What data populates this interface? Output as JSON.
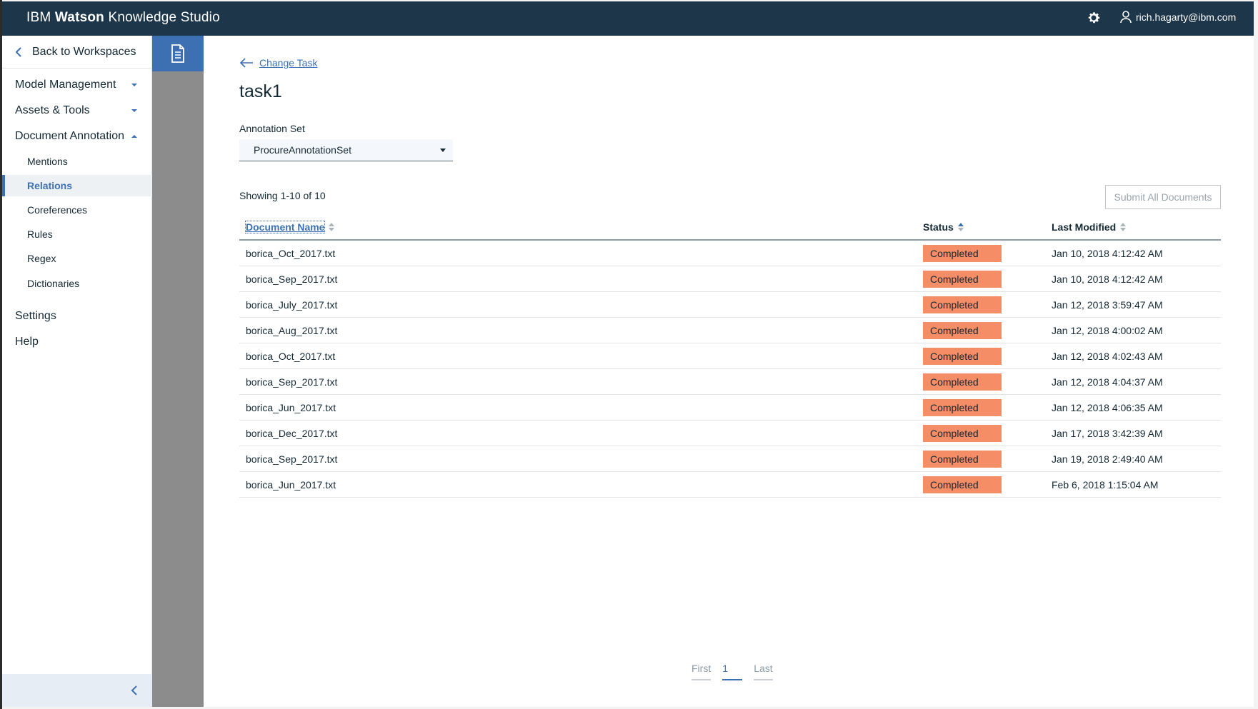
{
  "header": {
    "brand_prefix": "IBM",
    "brand_bold": "Watson",
    "brand_suffix": "Knowledge Studio",
    "user_email": "rich.hagarty@ibm.com",
    "settings_icon": "gear-icon",
    "user_icon": "user-icon",
    "bg_color": "#1d3649"
  },
  "sidebar": {
    "back_label": "Back to Workspaces",
    "groups": [
      {
        "label": "Model Management",
        "expanded": false
      },
      {
        "label": "Assets & Tools",
        "expanded": false
      },
      {
        "label": "Document Annotation",
        "expanded": true
      }
    ],
    "sub_items": [
      {
        "label": "Mentions",
        "active": false
      },
      {
        "label": "Relations",
        "active": true
      },
      {
        "label": "Coreferences",
        "active": false
      },
      {
        "label": "Rules",
        "active": false
      },
      {
        "label": "Regex",
        "active": false
      },
      {
        "label": "Dictionaries",
        "active": false
      }
    ],
    "bottom_items": [
      {
        "label": "Settings"
      },
      {
        "label": "Help"
      }
    ]
  },
  "rail": {
    "active_icon": "document-icon",
    "accent_color": "#3d70b2"
  },
  "main": {
    "change_task_label": "Change Task",
    "title": "task1",
    "annotation_set_label": "Annotation Set",
    "annotation_set_value": "ProcureAnnotationSet",
    "showing_text": "Showing 1-10 of 10",
    "submit_all_label": "Submit All Documents",
    "columns": [
      "Document Name",
      "Status",
      "Last Modified"
    ],
    "rows": [
      {
        "name": "borica_Oct_2017.txt",
        "status": "Completed",
        "modified": "Jan 10, 2018 4:12:42 AM"
      },
      {
        "name": "borica_Sep_2017.txt",
        "status": "Completed",
        "modified": "Jan 10, 2018 4:12:42 AM"
      },
      {
        "name": "borica_July_2017.txt",
        "status": "Completed",
        "modified": "Jan 12, 2018 3:59:47 AM"
      },
      {
        "name": "borica_Aug_2017.txt",
        "status": "Completed",
        "modified": "Jan 12, 2018 4:00:02 AM"
      },
      {
        "name": "borica_Oct_2017.txt",
        "status": "Completed",
        "modified": "Jan 12, 2018 4:02:43 AM"
      },
      {
        "name": "borica_Sep_2017.txt",
        "status": "Completed",
        "modified": "Jan 12, 2018 4:04:37 AM"
      },
      {
        "name": "borica_Jun_2017.txt",
        "status": "Completed",
        "modified": "Jan 12, 2018 4:06:35 AM"
      },
      {
        "name": "borica_Dec_2017.txt",
        "status": "Completed",
        "modified": "Jan 17, 2018 3:42:39 AM"
      },
      {
        "name": "borica_Sep_2017.txt",
        "status": "Completed",
        "modified": "Jan 19, 2018 2:49:40 AM"
      },
      {
        "name": "borica_Jun_2017.txt",
        "status": "Completed",
        "modified": "Feb 6, 2018 1:15:04 AM"
      }
    ],
    "status_color": "#f58d66"
  },
  "pagination": {
    "first_label": "First",
    "current_page": "1",
    "last_label": "Last"
  }
}
